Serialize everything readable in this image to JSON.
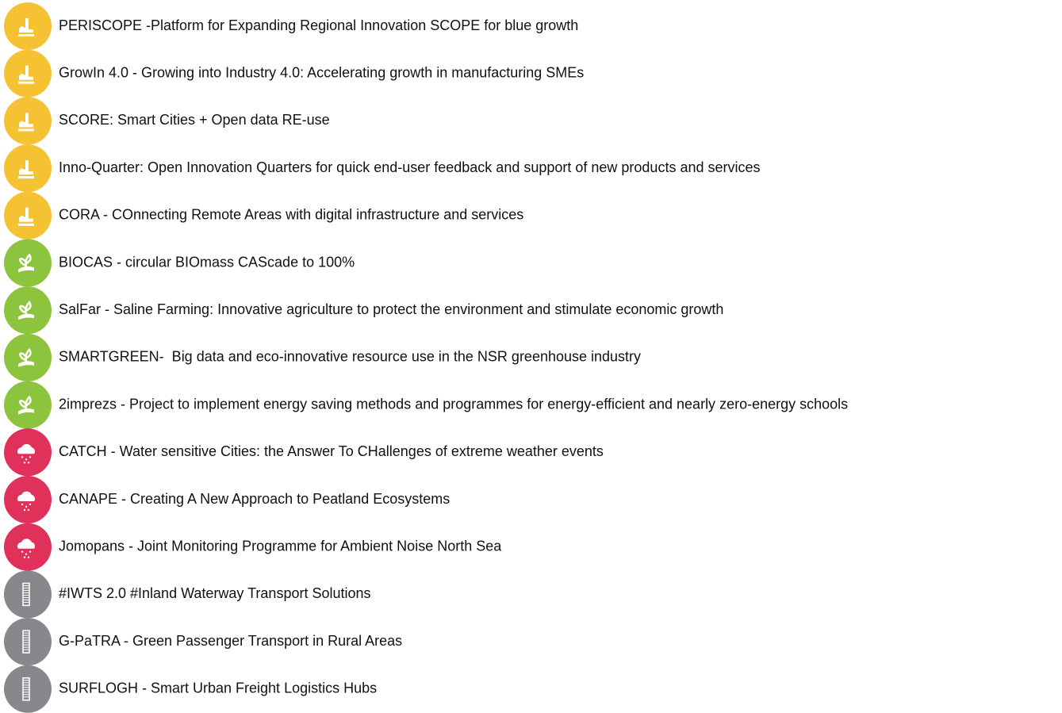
{
  "groups": [
    {
      "color": "#f4c232",
      "icon": "hand",
      "items": [
        "PERISCOPE -Platform for Expanding Regional Innovation SCOPE for blue growth",
        "GrowIn 4.0 - Growing into Industry 4.0: Accelerating growth in manufacturing SMEs",
        "SCORE: Smart Cities + Open data RE-use",
        "Inno-Quarter: Open Innovation Quarters for quick end-user feedback and support of new products and services",
        "CORA - COnnecting Remote Areas with digital infrastructure and services"
      ]
    },
    {
      "color": "#8cc43e",
      "icon": "sprout",
      "items": [
        "BIOCAS - circular BIOmass CAScade to 100%",
        "SalFar - Saline Farming: Innovative agriculture to protect the environment and stimulate economic growth",
        "SMARTGREEN-  Big data and eco-innovative resource use in the NSR greenhouse industry",
        "2imprezs - Project to implement energy saving methods and programmes for energy-efficient and nearly zero-energy schools"
      ]
    },
    {
      "color": "#df3159",
      "icon": "cloud",
      "items": [
        "CATCH - Water sensitive Cities: the Answer To CHallenges of extreme weather events",
        "CANAPE - Creating A New Approach to Peatland Ecosystems",
        "Jomopans - Joint Monitoring Programme for Ambient Noise North Sea"
      ]
    },
    {
      "color": "#86888b",
      "icon": "ladder",
      "items": [
        "#IWTS 2.0 #Inland Waterway Transport Solutions",
        "G-PaTRA - Green Passenger Transport in Rural Areas",
        "SURFLOGH - Smart Urban Freight Logistics Hubs"
      ]
    }
  ]
}
